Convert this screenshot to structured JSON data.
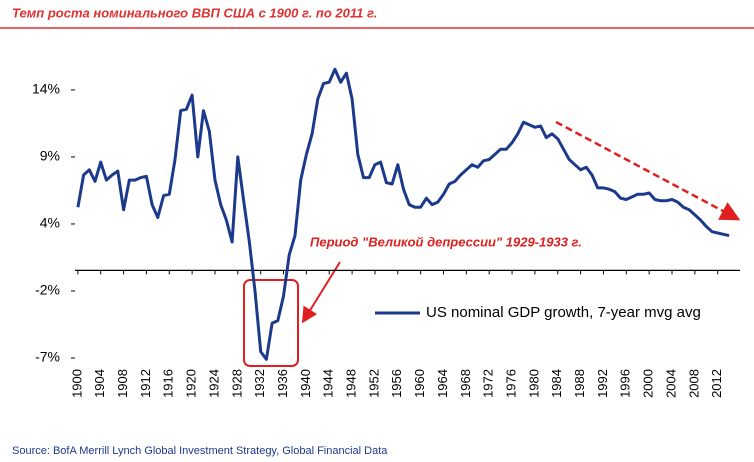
{
  "chart_data": {
    "type": "line",
    "title": "Темп роста номинального ВВП США с 1900 г. по 2011 г.",
    "annotation": "Период \"Великой депрессии\" 1929-1933 г.",
    "source": "Source: BofA Merrill Lynch Global Investment Strategy, Global Financial Data",
    "x": [
      1900,
      1901,
      1902,
      1903,
      1904,
      1905,
      1906,
      1907,
      1908,
      1909,
      1910,
      1911,
      1912,
      1913,
      1914,
      1915,
      1916,
      1917,
      1918,
      1919,
      1920,
      1921,
      1922,
      1923,
      1924,
      1925,
      1926,
      1927,
      1928,
      1929,
      1930,
      1931,
      1932,
      1933,
      1934,
      1935,
      1936,
      1937,
      1938,
      1939,
      1940,
      1941,
      1942,
      1943,
      1944,
      1945,
      1946,
      1947,
      1948,
      1949,
      1950,
      1951,
      1952,
      1953,
      1954,
      1955,
      1956,
      1957,
      1958,
      1959,
      1960,
      1961,
      1962,
      1963,
      1964,
      1965,
      1966,
      1967,
      1968,
      1969,
      1970,
      1971,
      1972,
      1973,
      1974,
      1975,
      1976,
      1977,
      1978,
      1979,
      1980,
      1981,
      1982,
      1983,
      1984,
      1985,
      1986,
      1987,
      1988,
      1989,
      1990,
      1991,
      1992,
      1993,
      1994,
      1995,
      1996,
      1997,
      1998,
      1999,
      2000,
      2001,
      2002,
      2003,
      2004,
      2005,
      2006,
      2007,
      2008,
      2009,
      2010,
      2011,
      2012,
      2013,
      2014
    ],
    "series": [
      {
        "name": "US nominal GDP growth, 7-year mvg avg",
        "color": "#1c3a8c",
        "values": [
          4.9,
          7.4,
          7.8,
          6.9,
          8.4,
          7.0,
          7.4,
          7.7,
          4.7,
          7.0,
          7.0,
          7.2,
          7.3,
          5.1,
          4.1,
          5.8,
          5.9,
          8.6,
          12.4,
          12.5,
          13.6,
          8.8,
          12.4,
          10.8,
          7.0,
          5.1,
          3.9,
          2.2,
          8.8,
          5.5,
          2.3,
          -1.6,
          -6.3,
          -6.9,
          -4.1,
          -3.9,
          -2.0,
          1.2,
          2.7,
          7.0,
          9.0,
          10.6,
          13.3,
          14.5,
          14.6,
          15.6,
          14.6,
          15.3,
          13.3,
          9.0,
          7.2,
          7.2,
          8.2,
          8.4,
          6.8,
          6.7,
          8.2,
          6.3,
          5.1,
          4.9,
          4.9,
          5.6,
          5.1,
          5.3,
          5.9,
          6.7,
          6.9,
          7.4,
          7.8,
          8.2,
          8.0,
          8.5,
          8.6,
          9.0,
          9.4,
          9.4,
          9.9,
          10.6,
          11.5,
          11.3,
          11.1,
          11.2,
          10.3,
          10.6,
          10.2,
          9.4,
          8.6,
          8.2,
          7.8,
          8.0,
          7.4,
          6.4,
          6.4,
          6.3,
          6.1,
          5.6,
          5.5,
          5.7,
          5.9,
          5.9,
          6.0,
          5.5,
          5.4,
          5.4,
          5.5,
          5.3,
          4.9,
          4.7,
          4.3,
          3.9,
          3.4,
          3.0,
          2.9,
          2.8,
          2.7
        ]
      }
    ],
    "xlim": [
      1899.5,
      2015.9
    ],
    "xticks": [
      1900,
      1904,
      1908,
      1912,
      1916,
      1920,
      1924,
      1928,
      1932,
      1936,
      1940,
      1944,
      1948,
      1952,
      1956,
      1960,
      1964,
      1968,
      1972,
      1976,
      1980,
      1984,
      1988,
      1992,
      1996,
      2000,
      2004,
      2008,
      2012
    ],
    "ylim": [
      -6.8,
      16.4
    ],
    "yticks": [
      {
        "value": -6.8,
        "label": "-7%"
      },
      {
        "value": -1.6,
        "label": "-2%"
      },
      {
        "value": 3.6,
        "label": "4%"
      },
      {
        "value": 8.8,
        "label": "9%"
      },
      {
        "value": 14.0,
        "label": "14%"
      }
    ]
  }
}
